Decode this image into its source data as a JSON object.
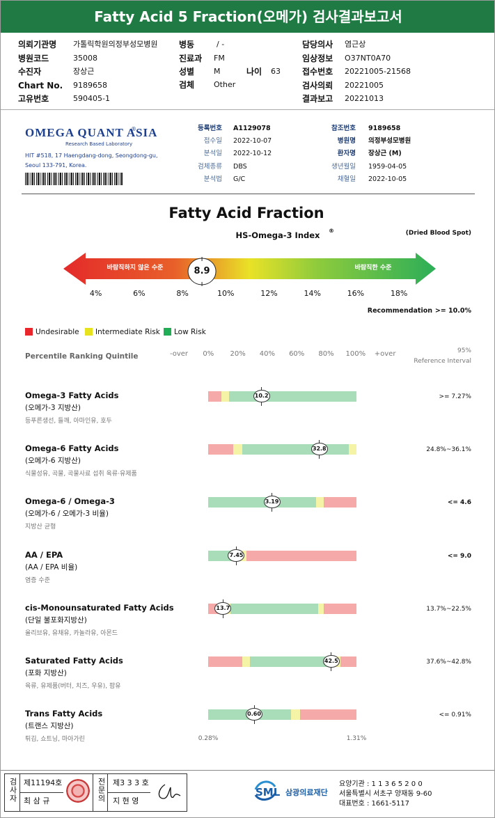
{
  "header": {
    "title": "Fatty Acid 5 Fraction(오메가) 검사결과보고서"
  },
  "patient_fields": [
    {
      "label": "의뢰기관명",
      "value": "가톨릭학원의정부성모병원"
    },
    {
      "label": "병원코드",
      "value": "35008"
    },
    {
      "label": "수진자",
      "value": "장상근"
    },
    {
      "label": "Chart No.",
      "value": "9189658"
    },
    {
      "label": "고유번호",
      "value": "590405-1"
    },
    {
      "label": "병동",
      "value": "/ -"
    },
    {
      "label": "진료과",
      "value": "FM"
    },
    {
      "label": "성별",
      "value": "M"
    },
    {
      "label": "나이",
      "value": "63"
    },
    {
      "label": "검체",
      "value": "Other"
    },
    {
      "label": "담당의사",
      "value": "염근상"
    },
    {
      "label": "임상정보",
      "value": "O37NT0A70"
    },
    {
      "label": "접수번호",
      "value": "20221005-21568"
    },
    {
      "label": "검사의뢰",
      "value": "20221005"
    },
    {
      "label": "결과보고",
      "value": "20221013"
    }
  ],
  "lab": {
    "name": "OMEGA QUANT ASIA",
    "registered": "®",
    "tagline": "Research Based Laboratory",
    "address": [
      "HIT #518, 17 Haengdang-dong, Seongdong-gu,",
      "Seoul 133-791, Korea."
    ]
  },
  "report_fields": [
    {
      "label": "등록번호",
      "value": "A1129078"
    },
    {
      "label": "접수일",
      "value": "2022-10-07"
    },
    {
      "label": "분석일",
      "value": "2022-10-12"
    },
    {
      "label": "검체종류",
      "value": "DBS"
    },
    {
      "label": "분석법",
      "value": "G/C"
    },
    {
      "label": "참조번호",
      "value": "9189658"
    },
    {
      "label": "병원명",
      "value": "의정부성모병원"
    },
    {
      "label": "환자명",
      "value": "장상근 (M)"
    },
    {
      "label": "생년월일",
      "value": "1959-04-05"
    },
    {
      "label": "채혈일",
      "value": "2022-10-05"
    }
  ],
  "index": {
    "title": "Fatty Acid Fraction",
    "subtitle": "HS-Omega-3 Index",
    "registered": "®",
    "specimen_note": "(Dried Blood Spot)",
    "undesirable_label": "바람직하지 않은 수준",
    "desirable_label": "바람직한 수준",
    "value": 8.9,
    "xlim": [
      2.5,
      19.7
    ],
    "xticks": [
      {
        "value": 4,
        "label": "4%"
      },
      {
        "value": 6,
        "label": "6%"
      },
      {
        "value": 8,
        "label": "8%"
      },
      {
        "value": 10,
        "label": "10%"
      },
      {
        "value": 12,
        "label": "12%"
      },
      {
        "value": 14,
        "label": "14%"
      },
      {
        "value": 16,
        "label": "16%"
      },
      {
        "value": 18,
        "label": "18%"
      }
    ],
    "recommendation_label": "Recommendation",
    "recommendation": ">= 10.0%"
  },
  "legend": [
    {
      "label": "Undesirable",
      "color": "#e8262b"
    },
    {
      "label": "Intermediate Risk",
      "color": "#e6e21e"
    },
    {
      "label": "Low Risk",
      "color": "#21ad55"
    }
  ],
  "percentile": {
    "title": "Percentile Ranking Quintile",
    "ticks": [
      "-over",
      "0%",
      "20%",
      "40%",
      "60%",
      "80%",
      "100%",
      "+over"
    ],
    "reference_title": [
      "95%",
      "Reference Interval"
    ]
  },
  "items": [
    {
      "name": "Omega-3 Fatty Acids",
      "korean": "(오메가-3 지방산)",
      "foods": "등푸른생선, 들깨, 아마인유, 호두",
      "value": 10.2,
      "percentile": 36,
      "reference": ">= 7.27%",
      "zones": [
        {
          "color": "#f6a9a9",
          "end": 9
        },
        {
          "color": "#f5f3a6",
          "end": 14
        },
        {
          "color": "#a9dcb9",
          "end": 100
        }
      ]
    },
    {
      "name": "Omega-6 Fatty Acids",
      "korean": "(오메가-6 지방산)",
      "foods": "식물성유, 곡물, 곡물사료 섭취 육류·유제품",
      "value": 32.8,
      "percentile": 75,
      "reference": "24.8%~36.1%",
      "zones": [
        {
          "color": "#f6a9a9",
          "end": 17
        },
        {
          "color": "#f5f3a6",
          "end": 23
        },
        {
          "color": "#a9dcb9",
          "end": 95
        },
        {
          "color": "#f5f3a6",
          "end": 100
        }
      ]
    },
    {
      "name": "Omega-6 / Omega-3",
      "korean": "(오메가-6 / 오메가-3 비율)",
      "foods": "지방산 균형",
      "value": 3.19,
      "percentile": 43,
      "reference": "<= 4.6",
      "zones": [
        {
          "color": "#a9dcb9",
          "end": 73
        },
        {
          "color": "#f5f3a6",
          "end": 78
        },
        {
          "color": "#f6a9a9",
          "end": 100
        }
      ]
    },
    {
      "name": "AA / EPA",
      "korean": "(AA / EPA 비율)",
      "foods": "염증 수준",
      "value": 7.45,
      "percentile": 19,
      "reference": "<= 9.0",
      "zones": [
        {
          "color": "#a9dcb9",
          "end": 22
        },
        {
          "color": "#f5f3a6",
          "end": 26
        },
        {
          "color": "#f6a9a9",
          "end": 100
        }
      ]
    },
    {
      "name": "cis-Monounsaturated Fatty Acids",
      "korean": "(단일 불포화지방산)",
      "foods": "올리브유, 유채유, 카놀라유, 아몬드",
      "value": 13.7,
      "percentile": 10,
      "reference": "13.7%~22.5%",
      "zones": [
        {
          "color": "#f6a9a9",
          "end": 10
        },
        {
          "color": "#f5f3a6",
          "end": 15
        },
        {
          "color": "#a9dcb9",
          "end": 74
        },
        {
          "color": "#f5f3a6",
          "end": 78
        },
        {
          "color": "#f6a9a9",
          "end": 100
        }
      ]
    },
    {
      "name": "Saturated Fatty Acids",
      "korean": "(포화 지방산)",
      "foods": "육류, 유제품(버터, 치즈, 우유), 팜유",
      "value": 42.5,
      "percentile": 83,
      "reference": "37.6%~42.8%",
      "zones": [
        {
          "color": "#f6a9a9",
          "end": 23
        },
        {
          "color": "#f5f3a6",
          "end": 28
        },
        {
          "color": "#a9dcb9",
          "end": 84
        },
        {
          "color": "#f5f3a6",
          "end": 89
        },
        {
          "color": "#f6a9a9",
          "end": 100
        }
      ]
    },
    {
      "name": "Trans Fatty Acids",
      "korean": "(트랜스 지방산)",
      "foods": "튀김, 쇼트닝, 마아가린",
      "value": 0.6,
      "value_label": "0.60",
      "percentile": 31,
      "reference": "<= 0.91%",
      "scale_labels": [
        "0.28%",
        "1.31%"
      ],
      "zones": [
        {
          "color": "#a9dcb9",
          "end": 56
        },
        {
          "color": "#f5f3a6",
          "end": 62
        },
        {
          "color": "#f6a9a9",
          "end": 100
        }
      ]
    }
  ],
  "footer": {
    "examiner_title": "검사자",
    "examiner_no": "제11194호",
    "examiner_name": "최 삼 규",
    "specialist_title": "전문의",
    "specialist_no": "제3 3 3 호",
    "specialist_name": "지 현 영",
    "org_short": "SML",
    "org_name": "삼광의료재단",
    "institution_code": "요양기관 : 1 1 3 6 5 2 0 0",
    "address": "서울특별시 서초구 양재동 9-60",
    "phone": "대표번호 : 1661-5117"
  }
}
